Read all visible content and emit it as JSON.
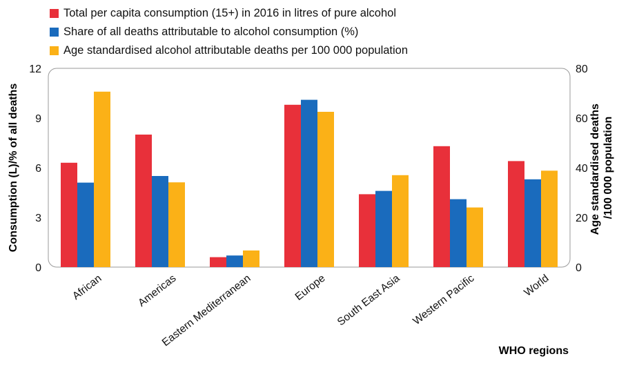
{
  "chart_data": {
    "type": "bar",
    "categories": [
      "African",
      "Americas",
      "Eastern Mediterranean",
      "Europe",
      "South East Asia",
      "Western Pacific",
      "World"
    ],
    "series": [
      {
        "name": "Total per capita consumption (15+) in 2016 in litres of pure alcohol",
        "axis": "left",
        "color": "#e8303a",
        "values": [
          6.3,
          8.0,
          0.6,
          9.8,
          4.4,
          7.3,
          6.4
        ]
      },
      {
        "name": "Share of all deaths attributable to alcohol consumption (%)",
        "axis": "left",
        "color": "#1a6bbd",
        "values": [
          5.1,
          5.5,
          0.7,
          10.1,
          4.6,
          4.1,
          5.3
        ]
      },
      {
        "name": "Age standardised alcohol attributable deaths per 100 000 population",
        "axis": "right",
        "color": "#fbb117",
        "values": [
          70.6,
          34.1,
          6.7,
          62.5,
          37.0,
          24.0,
          38.8
        ]
      }
    ],
    "xlabel": "WHO regions",
    "ylabel_left": "Consumption (L)/% of all deaths",
    "ylabel_right": [
      "Age standardised deaths",
      "/100 000 population"
    ],
    "ylim_left": [
      0,
      12
    ],
    "yticks_left": [
      "0",
      "3",
      "6",
      "9",
      "12"
    ],
    "ylim_right": [
      0,
      80
    ],
    "yticks_right": [
      "0",
      "20",
      "40",
      "60",
      "80"
    ],
    "grid": false,
    "legend_position": "top-left"
  }
}
